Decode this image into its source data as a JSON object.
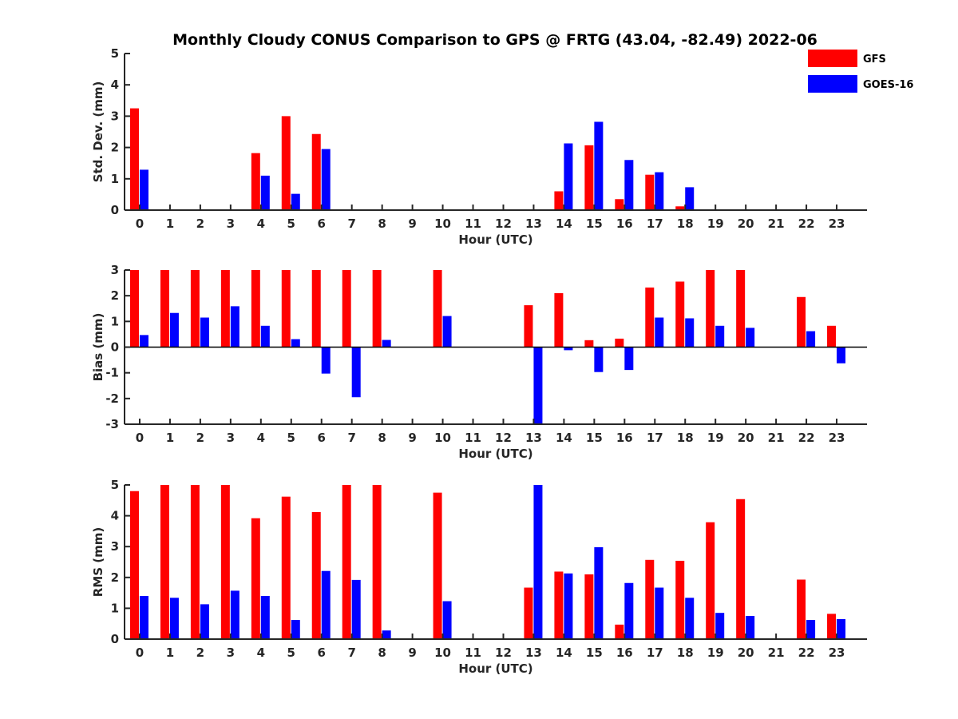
{
  "chart_data": {
    "type": "bar",
    "title": "Monthly Cloudy CONUS Comparison to GPS @ FRTG (43.04, -82.49) 2022-06",
    "legend": {
      "placement": "top-right",
      "entries": [
        {
          "name": "GFS",
          "color": "#ff0000"
        },
        {
          "name": "GOES-16",
          "color": "#0000ff"
        }
      ]
    },
    "categories": [
      "0",
      "1",
      "2",
      "3",
      "4",
      "5",
      "6",
      "7",
      "8",
      "9",
      "10",
      "11",
      "12",
      "13",
      "14",
      "15",
      "16",
      "17",
      "18",
      "19",
      "20",
      "21",
      "22",
      "23"
    ],
    "panels": [
      {
        "ylabel": "Std. Dev. (mm)",
        "xlabel": "Hour (UTC)",
        "ylim": [
          0,
          5
        ],
        "yticks": [
          0,
          1,
          2,
          3,
          4,
          5
        ],
        "series": [
          {
            "name": "GFS",
            "values": [
              3.25,
              0,
              0,
              0,
              1.82,
              3.0,
              2.43,
              0,
              0,
              0,
              0,
              0,
              0,
              0,
              0.6,
              2.07,
              0.35,
              1.13,
              0.12,
              0,
              0,
              0,
              0,
              0
            ]
          },
          {
            "name": "GOES-16",
            "values": [
              1.29,
              0,
              0,
              0,
              1.1,
              0.52,
              1.95,
              0,
              0,
              0,
              0,
              0,
              0,
              0,
              2.13,
              2.82,
              1.6,
              1.21,
              0.73,
              0,
              0,
              0,
              0,
              0
            ]
          }
        ]
      },
      {
        "ylabel": "Bias (mm)",
        "xlabel": "Hour (UTC)",
        "ylim": [
          -3,
          3
        ],
        "yticks": [
          -3,
          -2,
          -1,
          0,
          1,
          2,
          3
        ],
        "series": [
          {
            "name": "GFS",
            "values": [
              3,
              3,
              3,
              3,
              3,
              3,
              3,
              3,
              3,
              0,
              3,
              0,
              0,
              1.63,
              2.1,
              0.27,
              0.33,
              2.32,
              2.55,
              3,
              3,
              0,
              1.95,
              0.83
            ]
          },
          {
            "name": "GOES-16",
            "values": [
              0.47,
              1.33,
              1.15,
              1.59,
              0.83,
              0.31,
              -1.03,
              -1.95,
              0.28,
              0,
              1.21,
              0,
              0,
              -3,
              -0.12,
              -0.97,
              -0.89,
              1.15,
              1.12,
              0.83,
              0.75,
              0,
              0.62,
              -0.63
            ]
          }
        ]
      },
      {
        "ylabel": "RMS (mm)",
        "xlabel": "Hour (UTC)",
        "ylim": [
          0,
          5
        ],
        "yticks": [
          0,
          1,
          2,
          3,
          4,
          5
        ],
        "series": [
          {
            "name": "GFS",
            "values": [
              4.8,
              5,
              5,
              5,
              3.92,
              4.62,
              4.12,
              5,
              5,
              0,
              4.75,
              0,
              0,
              1.67,
              2.19,
              2.1,
              0.47,
              2.57,
              2.54,
              3.79,
              4.54,
              0,
              1.93,
              0.82
            ]
          },
          {
            "name": "GOES-16",
            "values": [
              1.4,
              1.34,
              1.13,
              1.57,
              1.4,
              0.62,
              2.21,
              1.92,
              0.28,
              0,
              1.23,
              0,
              0,
              5,
              2.13,
              2.98,
              1.82,
              1.67,
              1.34,
              0.85,
              0.75,
              0,
              0.62,
              0.65
            ]
          }
        ]
      }
    ]
  }
}
